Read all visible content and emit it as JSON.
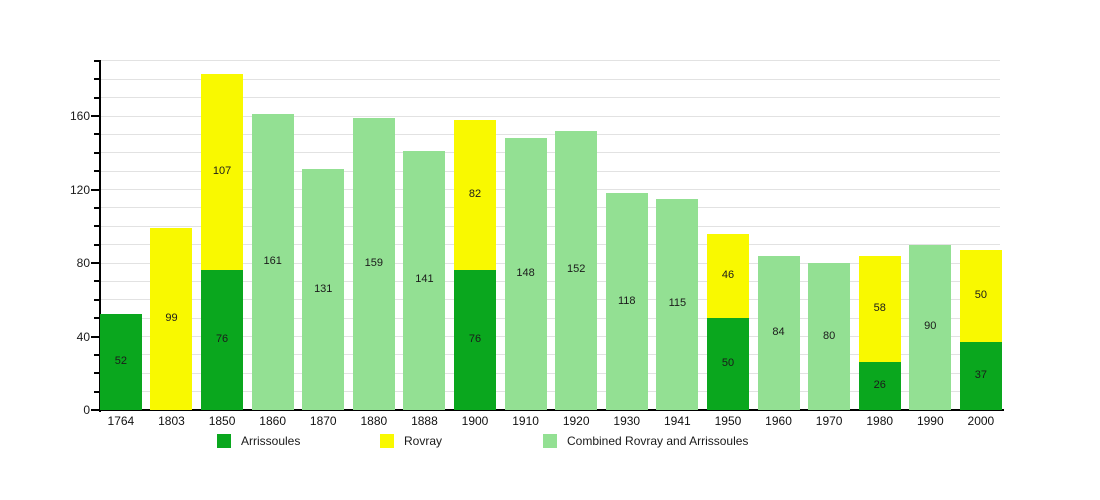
{
  "chart_data": {
    "type": "bar",
    "stacked": true,
    "categories": [
      "1764",
      "1803",
      "1850",
      "1860",
      "1870",
      "1880",
      "1888",
      "1900",
      "1910",
      "1920",
      "1930",
      "1941",
      "1950",
      "1960",
      "1970",
      "1980",
      "1990",
      "2000"
    ],
    "series": [
      {
        "name": "Arrissoules",
        "color": "#0aa71e",
        "values": [
          52,
          null,
          76,
          null,
          null,
          null,
          null,
          76,
          null,
          null,
          null,
          null,
          50,
          null,
          null,
          26,
          null,
          37
        ]
      },
      {
        "name": "Rovray",
        "color": "#f9f900",
        "values": [
          null,
          99,
          107,
          null,
          null,
          null,
          null,
          82,
          null,
          null,
          null,
          null,
          46,
          null,
          null,
          58,
          null,
          50
        ]
      },
      {
        "name": "Combined Rovray and Arrissoules",
        "color": "#93e093",
        "values": [
          null,
          null,
          null,
          161,
          131,
          159,
          141,
          null,
          148,
          152,
          118,
          115,
          null,
          84,
          80,
          null,
          90,
          null
        ]
      }
    ],
    "y_axis": {
      "tick_labels": [
        "0",
        "40",
        "80",
        "120",
        "160"
      ],
      "tick_values": [
        0,
        40,
        80,
        120,
        160
      ],
      "minor_step": 10,
      "max": 190
    },
    "grid": true,
    "legend_position": "bottom"
  },
  "colors": {
    "grid": "#e2e2e2",
    "axis": "#000000",
    "value_label": "#1b1b1b"
  }
}
